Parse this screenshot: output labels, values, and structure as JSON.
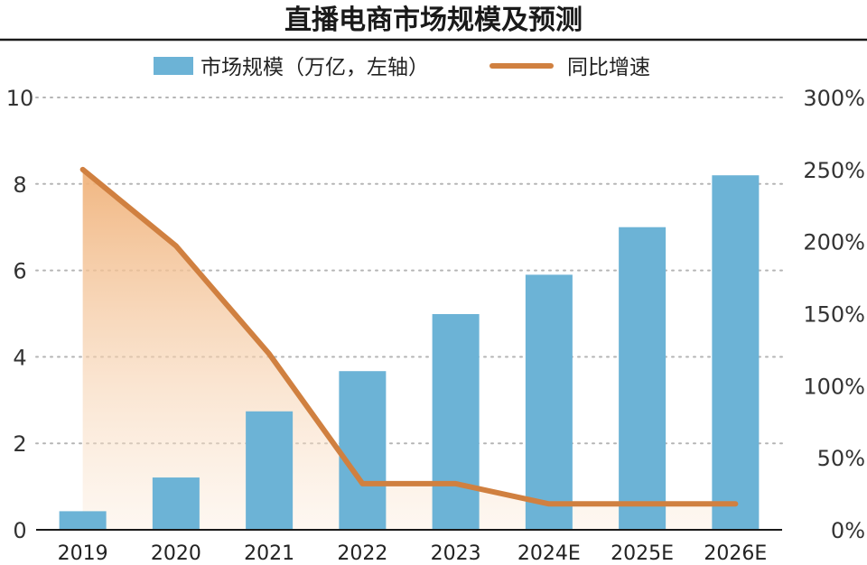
{
  "chart_data": {
    "type": "bar",
    "title": "直播电商市场规模及预测",
    "categories": [
      "2019",
      "2020",
      "2021",
      "2022",
      "2023",
      "2024E",
      "2025E",
      "2026E"
    ],
    "series": [
      {
        "name": "市场规模（万亿，左轴）",
        "type": "bar",
        "axis": "left",
        "color": "#6cb3d6",
        "values": [
          0.43,
          1.21,
          2.74,
          3.67,
          4.99,
          5.9,
          7.0,
          8.2
        ]
      },
      {
        "name": "同比增速",
        "type": "line",
        "axis": "right",
        "color": "#d08040",
        "values": [
          250,
          197,
          122,
          32,
          32,
          18,
          18,
          18
        ]
      }
    ],
    "y_left": {
      "range": [
        0,
        10
      ],
      "ticks": [
        "0",
        "2",
        "4",
        "6",
        "8",
        "10"
      ],
      "tick_values": [
        0,
        2,
        4,
        6,
        8,
        10
      ]
    },
    "y_right": {
      "range": [
        0,
        300
      ],
      "ticks": [
        "0%",
        "50%",
        "100%",
        "150%",
        "200%",
        "250%",
        "300%"
      ],
      "tick_values": [
        0,
        50,
        100,
        150,
        200,
        250,
        300
      ]
    },
    "grid": "dotted horizontal",
    "legend_position": "top-center"
  }
}
